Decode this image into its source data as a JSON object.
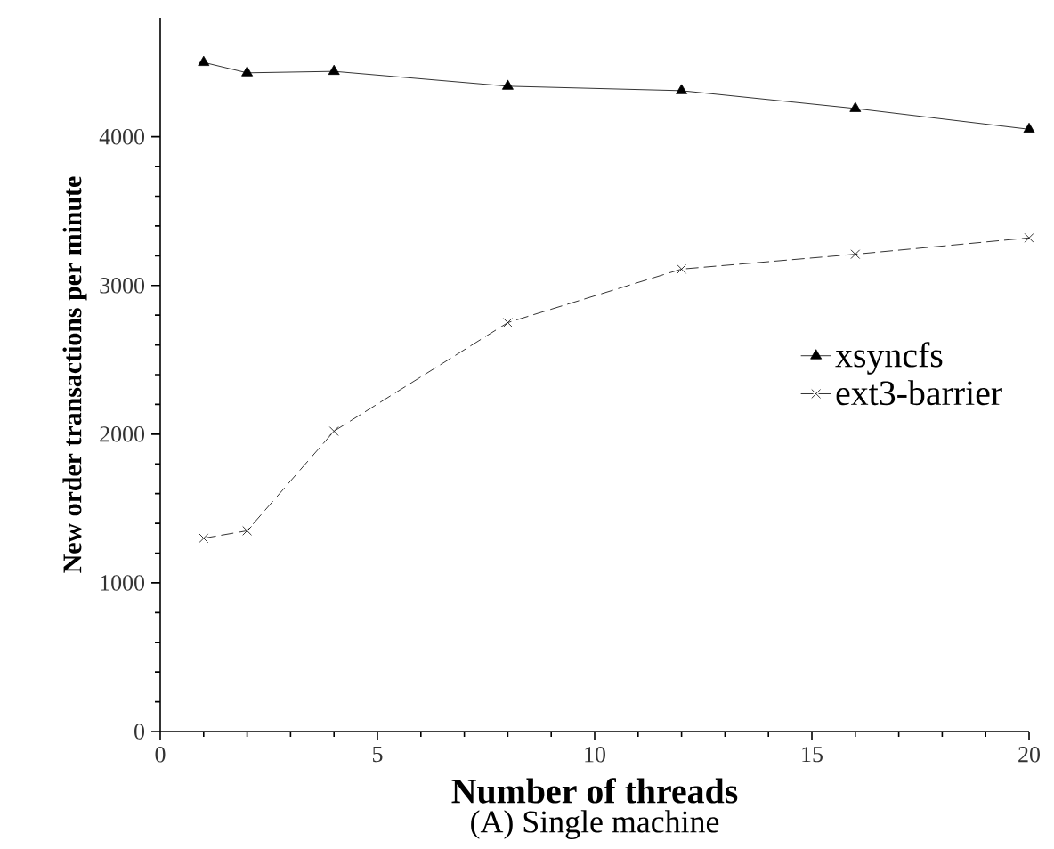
{
  "chart_data": {
    "type": "line",
    "title": "(A) Single machine",
    "xlabel": "Number of threads",
    "ylabel": "New order transactions per minute",
    "xlim": [
      0,
      20
    ],
    "ylim": [
      0,
      4800
    ],
    "xticks": [
      0,
      5,
      10,
      15,
      20
    ],
    "yticks": [
      0,
      1000,
      2000,
      3000,
      4000
    ],
    "x": [
      1,
      2,
      4,
      8,
      12,
      16,
      20
    ],
    "legend": "right",
    "grid": false,
    "series": [
      {
        "name": "xsyncfs",
        "color": "#000000",
        "marker": "triangle",
        "line_style": "solid",
        "values": [
          4500,
          4430,
          4440,
          4340,
          4310,
          4190,
          4050
        ]
      },
      {
        "name": "ext3-barrier",
        "color": "#000000",
        "marker": "cross",
        "line_style": "dashed",
        "values": [
          1300,
          1350,
          2020,
          2750,
          3110,
          3210,
          3320
        ]
      }
    ]
  }
}
